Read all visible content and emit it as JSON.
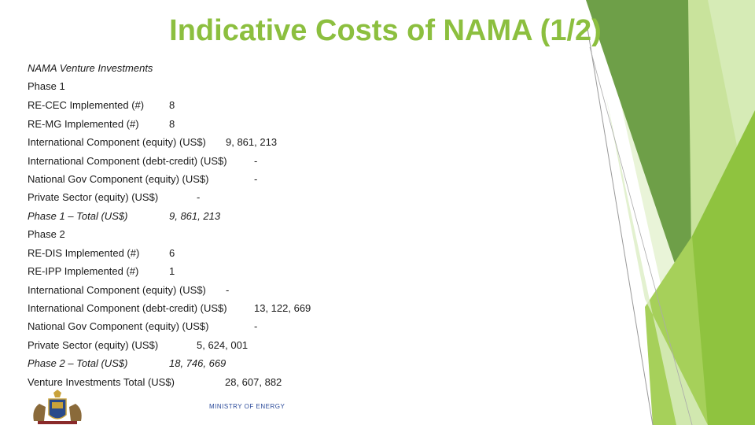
{
  "slide": {
    "title": "Indicative Costs of NAMA (1/2)",
    "subtitle": "NAMA Venture Investments",
    "phase1_header": "Phase 1",
    "phase1_rows": [
      {
        "label": "RE-CEC Implemented (#)",
        "value": "8"
      },
      {
        "label": "RE-MG Implemented (#)",
        "value": "8"
      },
      {
        "label": "International Component (equity) (US$)",
        "value": "9, 861, 213"
      },
      {
        "label": "International Component (debt-credit) (US$)",
        "value": "-"
      },
      {
        "label": "National Gov Component (equity) (US$)",
        "value": "-"
      },
      {
        "label": "Private Sector (equity) (US$)",
        "value": "-"
      }
    ],
    "phase1_total": {
      "label": "Phase 1 – Total (US$)",
      "value": "9, 861, 213"
    },
    "phase2_header": "Phase 2",
    "phase2_rows": [
      {
        "label": "RE-DIS Implemented (#)",
        "value": "6"
      },
      {
        "label": "RE-IPP Implemented (#)",
        "value": "1"
      },
      {
        "label": "International Component (equity) (US$)",
        "value": "-"
      },
      {
        "label": "International Component (debt-credit) (US$)",
        "value": "13, 122, 669"
      },
      {
        "label": "National Gov Component (equity) (US$)",
        "value": "-"
      },
      {
        "label": "Private Sector (equity) (US$)",
        "value": "5, 624, 001"
      }
    ],
    "phase2_total": {
      "label": "Phase 2 – Total (US$)",
      "value": "18, 746, 669"
    },
    "grand_total": {
      "label": "Venture Investments Total (US$)",
      "value": "28, 607, 882"
    },
    "footer": "MINISTRY OF ENERGY",
    "colors": {
      "title": "#8cbf3f",
      "accent_dark": "#5a9a2a",
      "accent_light": "#c8e39a"
    }
  }
}
